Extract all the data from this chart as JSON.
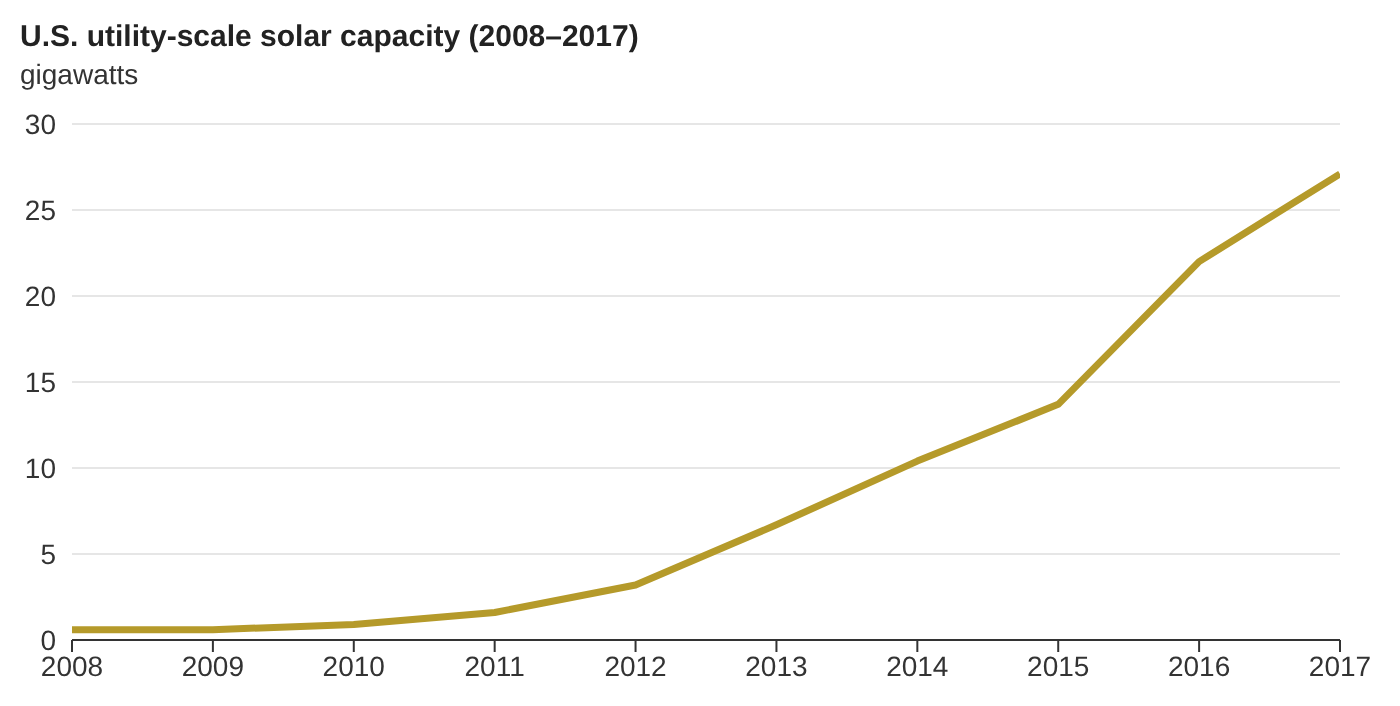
{
  "chart_data": {
    "type": "line",
    "title": "U.S. utility-scale solar capacity (2008–2017)",
    "ylabel": "gigawatts",
    "x": [
      2008,
      2009,
      2010,
      2011,
      2012,
      2013,
      2014,
      2015,
      2016,
      2017
    ],
    "series": [
      {
        "color": "#b59a2a",
        "values": [
          0.6,
          0.6,
          0.9,
          1.6,
          3.2,
          6.7,
          10.4,
          13.7,
          22.0,
          27.1
        ]
      }
    ],
    "xlim": [
      2008,
      2017
    ],
    "xticks": [
      2008,
      2009,
      2010,
      2011,
      2012,
      2013,
      2014,
      2015,
      2016,
      2017
    ],
    "ylim": [
      0,
      30
    ],
    "yticks": [
      0,
      5,
      10,
      15,
      20,
      25,
      30
    ],
    "grid": "y",
    "legend": false,
    "marker": "none",
    "line_style": "solid"
  }
}
